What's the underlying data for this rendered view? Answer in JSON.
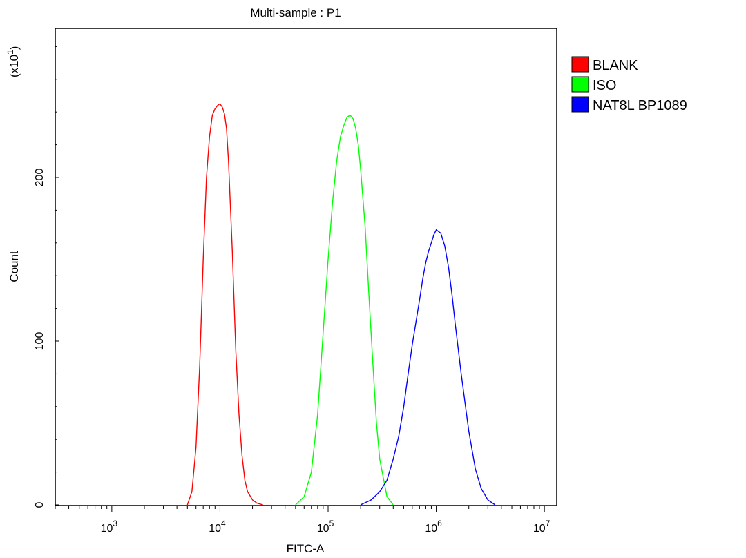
{
  "chart_data": {
    "type": "line",
    "title": "Multi-sample : P1",
    "xlabel": "FITC-A",
    "ylabel": "Count",
    "y_multiplier": "(x10",
    "y_multiplier_exp": "1",
    "y_multiplier_close": ")",
    "x_scale": "log",
    "xlim": [
      300,
      13000000
    ],
    "ylim": [
      0,
      290
    ],
    "x_ticks": [
      {
        "value": 1000,
        "base": "10",
        "exp": "3"
      },
      {
        "value": 10000,
        "base": "10",
        "exp": "4"
      },
      {
        "value": 100000,
        "base": "10",
        "exp": "5"
      },
      {
        "value": 1000000,
        "base": "10",
        "exp": "6"
      },
      {
        "value": 10000000,
        "base": "10",
        "exp": "7"
      }
    ],
    "y_ticks": [
      {
        "value": 0,
        "label": "0"
      },
      {
        "value": 100,
        "label": "100"
      },
      {
        "value": 200,
        "label": "200"
      }
    ],
    "legend_position": "right",
    "series": [
      {
        "name": "BLANK",
        "color": "#ff0000",
        "x": [
          5000,
          5500,
          6000,
          6500,
          7000,
          7500,
          8000,
          8500,
          9000,
          9500,
          10000,
          10500,
          11000,
          11500,
          12000,
          13000,
          14000,
          15000,
          16000,
          17000,
          18000,
          20000,
          22000,
          25000
        ],
        "y": [
          0,
          8,
          35,
          85,
          150,
          200,
          225,
          238,
          242,
          244,
          245,
          243,
          239,
          230,
          210,
          155,
          95,
          55,
          30,
          15,
          8,
          3,
          1,
          0
        ]
      },
      {
        "name": "ISO",
        "color": "#00ff00",
        "x": [
          50000,
          60000,
          70000,
          80000,
          90000,
          100000,
          110000,
          120000,
          130000,
          140000,
          150000,
          160000,
          170000,
          180000,
          190000,
          200000,
          220000,
          240000,
          260000,
          280000,
          300000,
          350000,
          400000
        ],
        "y": [
          0,
          5,
          20,
          55,
          105,
          150,
          185,
          210,
          225,
          232,
          237,
          238,
          236,
          230,
          220,
          205,
          170,
          125,
          85,
          50,
          28,
          5,
          0
        ]
      },
      {
        "name": "NAT8L BP1089",
        "color": "#0000ff",
        "x": [
          200000,
          250000,
          300000,
          350000,
          400000,
          450000,
          500000,
          550000,
          600000,
          650000,
          700000,
          750000,
          800000,
          850000,
          900000,
          950000,
          1000000,
          1100000,
          1200000,
          1300000,
          1400000,
          1500000,
          1700000,
          2000000,
          2300000,
          2600000,
          3000000,
          3500000
        ],
        "y": [
          0,
          3,
          8,
          15,
          28,
          42,
          60,
          80,
          98,
          112,
          125,
          138,
          148,
          155,
          160,
          165,
          168,
          166,
          158,
          145,
          128,
          110,
          80,
          45,
          22,
          10,
          3,
          0
        ]
      }
    ]
  }
}
